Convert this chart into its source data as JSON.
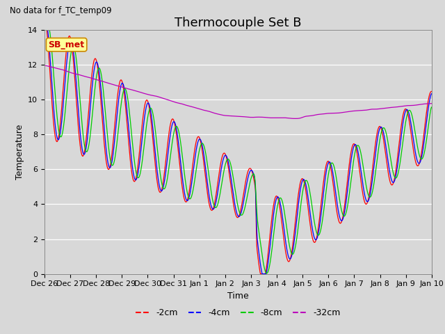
{
  "title": "Thermocouple Set B",
  "xlabel": "Time",
  "ylabel": "Temperature",
  "note": "No data for f_TC_temp09",
  "sb_met_label": "SB_met",
  "ylim": [
    0,
    14
  ],
  "yticks": [
    0,
    2,
    4,
    6,
    8,
    10,
    12,
    14
  ],
  "legend_entries": [
    "-2cm",
    "-4cm",
    "-8cm",
    "-32cm"
  ],
  "line_colors": [
    "#ff0000",
    "#0000ff",
    "#00cc00",
    "#bb00bb"
  ],
  "bg_color": "#d8d8d8",
  "plot_bg_color": "#d8d8d8",
  "title_fontsize": 13,
  "axis_label_fontsize": 9,
  "tick_label_fontsize": 8,
  "legend_fontsize": 9,
  "sb_met_color": "#cc0000",
  "sb_met_bg": "#ffff99",
  "sb_met_border": "#cc8800",
  "num_points": 2000
}
